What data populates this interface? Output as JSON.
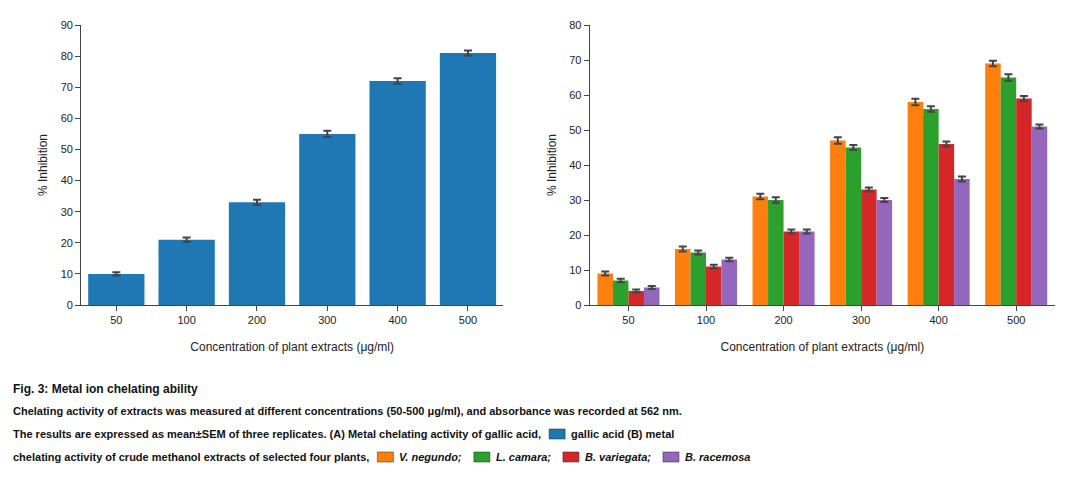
{
  "chart_data": [
    {
      "type": "bar",
      "title": "Fig. 3: Metal ion chelating ability",
      "annotations": [
        "Chelating activity of extracts was measured at different concentrations (50-500 μg/ml), and absorbance was recorded at 562 nm.",
        "The results are expressed as mean±SEM of three replicates. (A) Metal chelating activity of gallic acid,",
        "gallic acid (B) metal",
        "chelating activity of crude methanol extracts of selected four plants,"
      ],
      "xlabel": "Concentration of plant extracts (μg/ml)",
      "ylabel": "% Inhibition",
      "categories": [
        50,
        100,
        200,
        300,
        400,
        500
      ],
      "values": [
        10,
        21,
        33,
        55,
        72,
        81
      ],
      "errors": [
        0.5,
        0.7,
        0.8,
        1.0,
        0.9,
        0.8
      ],
      "ylim": [
        0,
        90
      ],
      "yticks": [
        0,
        10,
        20,
        30,
        40,
        50,
        60,
        70,
        80,
        90
      ],
      "grid": false
    },
    {
      "type": "bar",
      "xlabel": "Concentration of plant extracts (μg/ml)",
      "ylabel": "% Inhibition",
      "categories": [
        50,
        100,
        200,
        300,
        400,
        500
      ],
      "series": [
        {
          "name": "V. negundo;",
          "values": [
            9,
            16,
            31,
            47,
            58,
            69
          ],
          "errors": [
            0.6,
            0.7,
            0.8,
            0.9,
            0.9,
            0.8
          ]
        },
        {
          "name": "L. camara;",
          "values": [
            7,
            15,
            30,
            45,
            56,
            65
          ],
          "errors": [
            0.5,
            0.6,
            0.8,
            0.7,
            0.8,
            0.9
          ]
        },
        {
          "name": "B. variegata;",
          "values": [
            4,
            11,
            21,
            33,
            46,
            59
          ],
          "errors": [
            0.4,
            0.5,
            0.6,
            0.6,
            0.7,
            0.7
          ]
        },
        {
          "name": "B. racemosa",
          "values": [
            5,
            13,
            21,
            30,
            36,
            51
          ],
          "errors": [
            0.4,
            0.5,
            0.6,
            0.6,
            0.7,
            0.6
          ]
        }
      ],
      "ylim": [
        0,
        80
      ],
      "yticks": [
        0,
        10,
        20,
        30,
        40,
        50,
        60,
        70,
        80
      ],
      "grid": false
    }
  ]
}
